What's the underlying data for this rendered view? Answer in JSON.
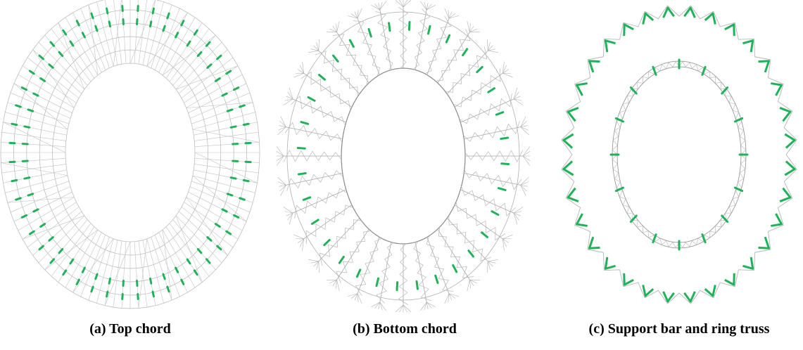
{
  "figure": {
    "panels": [
      {
        "caption": "(a) Top chord"
      },
      {
        "caption": "(b) Bottom chord"
      },
      {
        "caption": "(c) Support bar and ring truss"
      }
    ]
  }
}
